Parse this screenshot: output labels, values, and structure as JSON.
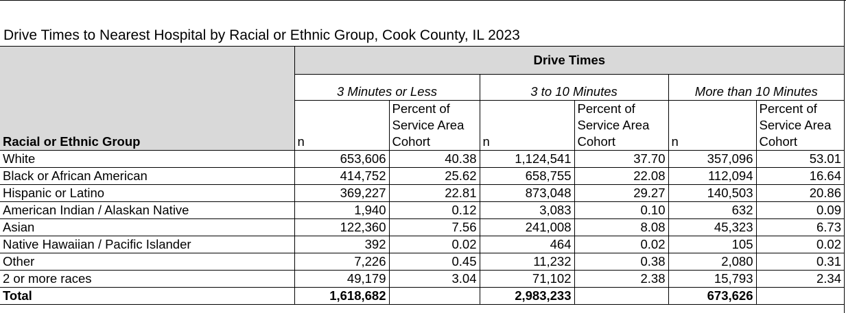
{
  "title": "Drive Times to Nearest Hospital by Racial or Ethnic Group, Cook County, IL 2023",
  "header": {
    "row_label": "Racial or Ethnic Group",
    "group_label": "Drive Times",
    "buckets": [
      "3 Minutes or Less",
      "3 to 10 Minutes",
      "More than 10 Minutes"
    ],
    "n_label": "n",
    "pct_label": "Percent of Service Area Cohort"
  },
  "rows": [
    {
      "label": "White",
      "v": [
        "653,606",
        "40.38",
        "1,124,541",
        "37.70",
        "357,096",
        "53.01"
      ]
    },
    {
      "label": "Black or African American",
      "v": [
        "414,752",
        "25.62",
        "658,755",
        "22.08",
        "112,094",
        "16.64"
      ]
    },
    {
      "label": "Hispanic or Latino",
      "v": [
        "369,227",
        "22.81",
        "873,048",
        "29.27",
        "140,503",
        "20.86"
      ]
    },
    {
      "label": "American Indian / Alaskan Native",
      "v": [
        "1,940",
        "0.12",
        "3,083",
        "0.10",
        "632",
        "0.09"
      ]
    },
    {
      "label": "Asian",
      "v": [
        "122,360",
        "7.56",
        "241,008",
        "8.08",
        "45,323",
        "6.73"
      ]
    },
    {
      "label": "Native Hawaiian / Pacific Islander",
      "v": [
        "392",
        "0.02",
        "464",
        "0.02",
        "105",
        "0.02"
      ]
    },
    {
      "label": "Other",
      "v": [
        "7,226",
        "0.45",
        "11,232",
        "0.38",
        "2,080",
        "0.31"
      ]
    },
    {
      "label": "2 or more races",
      "v": [
        "49,179",
        "3.04",
        "71,102",
        "2.38",
        "15,793",
        "2.34"
      ]
    }
  ],
  "total": {
    "label": "Total",
    "v": [
      "1,618,682",
      "",
      "2,983,233",
      "",
      "673,626",
      ""
    ]
  }
}
